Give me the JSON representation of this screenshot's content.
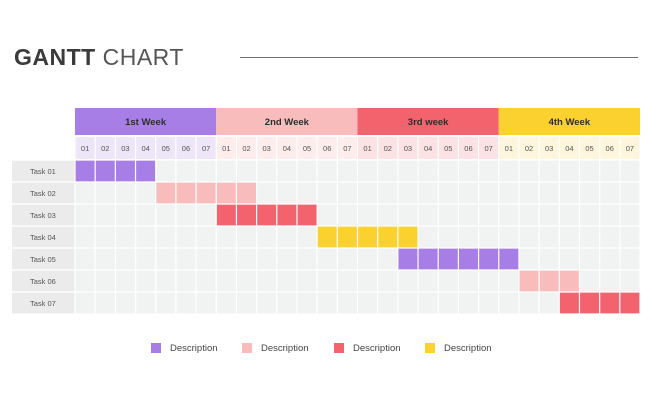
{
  "title": {
    "bold": "GANTT",
    "light": "CHART"
  },
  "colors": {
    "week1": "#a77ee6",
    "week2": "#f8bcbc",
    "week3": "#f2636e",
    "week4": "#fbd12f",
    "sub1": "#ece6f8",
    "sub2": "#fdeded",
    "sub3": "#fbe2e4",
    "sub4": "#fef6dc",
    "grid_bg": "#f1f3f2",
    "grid_line": "#ffffff",
    "task_label_bg": "#ebebeb"
  },
  "chart_data": {
    "type": "gantt",
    "weeks": [
      {
        "label": "1st Week",
        "color": "#a77ee6",
        "days": [
          "01",
          "02",
          "03",
          "04",
          "05",
          "06",
          "07"
        ]
      },
      {
        "label": "2nd Week",
        "color": "#f8bcbc",
        "days": [
          "01",
          "02",
          "03",
          "04",
          "05",
          "06",
          "07"
        ]
      },
      {
        "label": "3rd week",
        "color": "#f2636e",
        "days": [
          "01",
          "02",
          "03",
          "04",
          "05",
          "06",
          "07"
        ]
      },
      {
        "label": "4th Week",
        "color": "#fbd12f",
        "days": [
          "01",
          "02",
          "03",
          "04",
          "05",
          "06",
          "07"
        ]
      }
    ],
    "tasks": [
      {
        "name": "Task 01",
        "start_day": 1,
        "end_day": 4,
        "color": "#a77ee6"
      },
      {
        "name": "Task 02",
        "start_day": 5,
        "end_day": 9,
        "color": "#f8bcbc"
      },
      {
        "name": "Task 03",
        "start_day": 8,
        "end_day": 12,
        "color": "#f2636e"
      },
      {
        "name": "Task 04",
        "start_day": 13,
        "end_day": 17,
        "color": "#fbd12f"
      },
      {
        "name": "Task 05",
        "start_day": 17,
        "end_day": 22,
        "color": "#a77ee6"
      },
      {
        "name": "Task 06",
        "start_day": 23,
        "end_day": 25,
        "color": "#f8bcbc"
      },
      {
        "name": "Task 07",
        "start_day": 25,
        "end_day": 28,
        "color": "#f2636e"
      }
    ]
  },
  "legend": [
    {
      "label": "Description",
      "color": "#a77ee6"
    },
    {
      "label": "Description",
      "color": "#f8bcbc"
    },
    {
      "label": "Description",
      "color": "#f2636e"
    },
    {
      "label": "Description",
      "color": "#fbd12f"
    }
  ]
}
